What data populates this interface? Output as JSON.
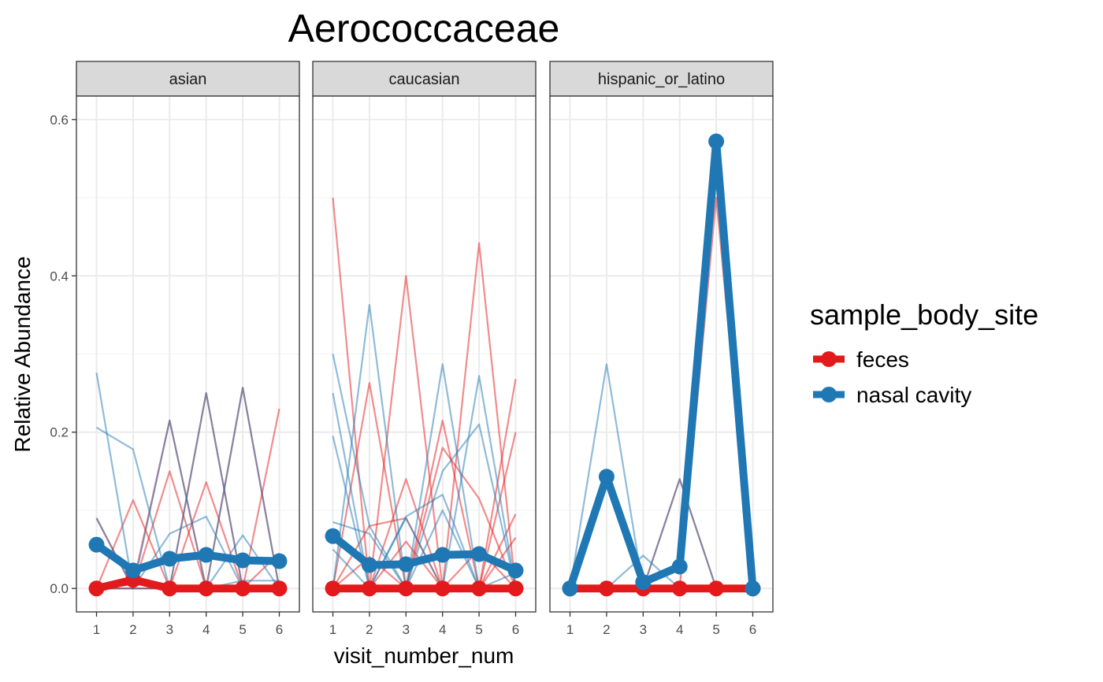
{
  "chart_data": {
    "type": "line",
    "title": "Aerococcaceae",
    "xlabel": "visit_number_num",
    "ylabel": "Relative Abundance",
    "x_ticks": [
      1,
      2,
      3,
      4,
      5,
      6
    ],
    "y_ticks": [
      "0.0",
      "0.2",
      "0.4",
      "0.6"
    ],
    "ylim": [
      -0.03,
      0.63
    ],
    "xlim": [
      0.45,
      6.55
    ],
    "grid": true,
    "legend": {
      "title": "sample_body_site",
      "placement": "right",
      "entries": [
        {
          "name": "feces",
          "color": "#e31a1c"
        },
        {
          "name": "nasal cavity",
          "color": "#1f78b4"
        }
      ]
    },
    "facets": [
      {
        "label": "asian",
        "mean_series": [
          {
            "name": "feces",
            "x": [
              1,
              2,
              3,
              4,
              5,
              6
            ],
            "y": [
              0.0,
              0.011,
              0.0,
              0.0,
              0.0,
              0.0
            ]
          },
          {
            "name": "nasal cavity",
            "x": [
              1,
              2,
              3,
              4,
              5,
              6
            ],
            "y": [
              0.056,
              0.023,
              0.038,
              0.043,
              0.036,
              0.035
            ]
          }
        ],
        "individual_series": [
          {
            "name": "feces",
            "x": [
              1,
              2,
              3,
              4,
              5,
              6
            ],
            "y": [
              0.0,
              0.005,
              0.215,
              0.0,
              0.0,
              0.0
            ]
          },
          {
            "name": "feces",
            "x": [
              1,
              2,
              3,
              4,
              5,
              6
            ],
            "y": [
              0.0,
              0.113,
              0.0,
              0.25,
              0.0,
              0.0
            ]
          },
          {
            "name": "feces",
            "x": [
              1,
              2,
              3,
              4,
              5,
              6
            ],
            "y": [
              0.0,
              0.0,
              0.15,
              0.0,
              0.257,
              0.0
            ]
          },
          {
            "name": "feces",
            "x": [
              1,
              2,
              3,
              4,
              5,
              6
            ],
            "y": [
              0.09,
              0.0,
              0.0,
              0.136,
              0.0,
              0.23
            ]
          },
          {
            "name": "feces",
            "x": [
              1,
              2,
              3,
              4,
              5,
              6
            ],
            "y": [
              0.0,
              0.0,
              0.0,
              0.0,
              0.0,
              0.045
            ]
          },
          {
            "name": "nasal cavity",
            "x": [
              1,
              2,
              3,
              4,
              5,
              6
            ],
            "y": [
              0.276,
              0.0,
              0.07,
              0.092,
              0.0,
              0.0
            ]
          },
          {
            "name": "nasal cavity",
            "x": [
              1,
              2,
              3,
              4,
              5,
              6
            ],
            "y": [
              0.206,
              0.178,
              0.0,
              0.0,
              0.068,
              0.0
            ]
          },
          {
            "name": "nasal cavity",
            "x": [
              1,
              2,
              3,
              4,
              5,
              6
            ],
            "y": [
              0.09,
              0.0,
              0.215,
              0.0,
              0.01,
              0.01
            ]
          },
          {
            "name": "nasal cavity",
            "x": [
              1,
              2,
              3,
              4,
              5,
              6
            ],
            "y": [
              0.0,
              0.015,
              0.0,
              0.25,
              0.0,
              0.0
            ]
          },
          {
            "name": "nasal cavity",
            "x": [
              1,
              2,
              3,
              4,
              5,
              6
            ],
            "y": [
              0.0,
              0.0,
              0.0,
              0.0,
              0.257,
              0.0
            ]
          }
        ]
      },
      {
        "label": "caucasian",
        "mean_series": [
          {
            "name": "feces",
            "x": [
              1,
              2,
              3,
              4,
              5,
              6
            ],
            "y": [
              0.0,
              0.0,
              0.0,
              0.0,
              0.0,
              0.0
            ]
          },
          {
            "name": "nasal cavity",
            "x": [
              1,
              2,
              3,
              4,
              5,
              6
            ],
            "y": [
              0.067,
              0.03,
              0.031,
              0.043,
              0.044,
              0.023
            ]
          }
        ],
        "individual_series": [
          {
            "name": "feces",
            "x": [
              1,
              2,
              3,
              4,
              5,
              6
            ],
            "y": [
              0.0,
              0.263,
              0.0,
              0.0,
              0.0,
              0.0
            ]
          },
          {
            "name": "feces",
            "x": [
              1,
              2,
              3,
              4,
              5,
              6
            ],
            "y": [
              0.0,
              0.0,
              0.4,
              0.0,
              0.0,
              0.0
            ]
          },
          {
            "name": "feces",
            "x": [
              1,
              2,
              3,
              4,
              5,
              6
            ],
            "y": [
              0.0,
              0.0,
              0.0,
              0.215,
              0.0,
              0.0
            ]
          },
          {
            "name": "feces",
            "x": [
              1,
              2,
              3,
              4,
              5,
              6
            ],
            "y": [
              0.0,
              0.0,
              0.0,
              0.0,
              0.442,
              0.0
            ]
          },
          {
            "name": "feces",
            "x": [
              1,
              2,
              3,
              4,
              5,
              6
            ],
            "y": [
              0.0,
              0.0,
              0.0,
              0.0,
              0.0,
              0.268
            ]
          },
          {
            "name": "feces",
            "x": [
              1,
              2,
              3,
              4,
              5,
              6
            ],
            "y": [
              0.5,
              0.0,
              0.0,
              0.0,
              0.0,
              0.2
            ]
          },
          {
            "name": "feces",
            "x": [
              1,
              2,
              3,
              4,
              5,
              6
            ],
            "y": [
              0.0,
              0.08,
              0.09,
              0.0,
              0.0,
              0.0
            ]
          },
          {
            "name": "feces",
            "x": [
              1,
              2,
              3,
              4,
              5,
              6
            ],
            "y": [
              0.0,
              0.0,
              0.14,
              0.0,
              0.0,
              0.095
            ]
          },
          {
            "name": "feces",
            "x": [
              1,
              2,
              3,
              4,
              5,
              6
            ],
            "y": [
              0.0,
              0.0,
              0.0,
              0.18,
              0.115,
              0.0
            ]
          },
          {
            "name": "feces",
            "x": [
              1,
              2,
              3,
              4,
              5,
              6
            ],
            "y": [
              0.0,
              0.04,
              0.0,
              0.0,
              0.0,
              0.065
            ]
          },
          {
            "name": "feces",
            "x": [
              1,
              2,
              3,
              4,
              5,
              6
            ],
            "y": [
              0.0,
              0.0,
              0.06,
              0.0,
              0.05,
              0.0
            ]
          },
          {
            "name": "nasal cavity",
            "x": [
              1,
              2,
              3,
              4,
              5,
              6
            ],
            "y": [
              0.195,
              0.0,
              0.0,
              0.1,
              0.0,
              0.0
            ]
          },
          {
            "name": "nasal cavity",
            "x": [
              1,
              2,
              3,
              4,
              5,
              6
            ],
            "y": [
              0.3,
              0.08,
              0.0,
              0.0,
              0.0,
              0.0
            ]
          },
          {
            "name": "nasal cavity",
            "x": [
              1,
              2,
              3,
              4,
              5,
              6
            ],
            "y": [
              0.25,
              0.0,
              0.09,
              0.0,
              0.0,
              0.0
            ]
          },
          {
            "name": "nasal cavity",
            "x": [
              1,
              2,
              3,
              4,
              5,
              6
            ],
            "y": [
              0.0,
              0.0,
              0.0,
              0.287,
              0.0,
              0.0
            ]
          },
          {
            "name": "nasal cavity",
            "x": [
              1,
              2,
              3,
              4,
              5,
              6
            ],
            "y": [
              0.0,
              0.0,
              0.0,
              0.0,
              0.272,
              0.0
            ]
          },
          {
            "name": "nasal cavity",
            "x": [
              1,
              2,
              3,
              4,
              5,
              6
            ],
            "y": [
              0.085,
              0.07,
              0.0,
              0.15,
              0.21,
              0.0
            ]
          },
          {
            "name": "nasal cavity",
            "x": [
              1,
              2,
              3,
              4,
              5,
              6
            ],
            "y": [
              0.0,
              0.363,
              0.0,
              0.0,
              0.0,
              0.0
            ]
          },
          {
            "name": "nasal cavity",
            "x": [
              1,
              2,
              3,
              4,
              5,
              6
            ],
            "y": [
              0.0,
              0.0,
              0.092,
              0.12,
              0.0,
              0.0
            ]
          },
          {
            "name": "nasal cavity",
            "x": [
              1,
              2,
              3,
              4,
              5,
              6
            ],
            "y": [
              0.05,
              0.0,
              0.0,
              0.0,
              0.0,
              0.02
            ]
          }
        ]
      },
      {
        "label": "hispanic_or_latino",
        "mean_series": [
          {
            "name": "feces",
            "x": [
              1,
              2,
              3,
              4,
              5,
              6
            ],
            "y": [
              0.0,
              0.0,
              0.0,
              0.0,
              0.0,
              0.0
            ]
          },
          {
            "name": "nasal cavity",
            "x": [
              1,
              2,
              3,
              4,
              5,
              6
            ],
            "y": [
              0.0,
              0.143,
              0.008,
              0.028,
              0.572,
              0.0
            ]
          }
        ],
        "individual_series": [
          {
            "name": "feces",
            "x": [
              1,
              2,
              3,
              4,
              5,
              6
            ],
            "y": [
              0.0,
              0.0,
              0.0,
              0.14,
              0.0,
              0.0
            ]
          },
          {
            "name": "feces",
            "x": [
              1,
              2,
              3,
              4,
              5,
              6
            ],
            "y": [
              0.0,
              0.0,
              0.0,
              0.0,
              0.5,
              0.0
            ]
          },
          {
            "name": "nasal cavity",
            "x": [
              1,
              2,
              3,
              4,
              5,
              6
            ],
            "y": [
              0.0,
              0.287,
              0.0,
              0.0,
              0.0,
              0.0
            ]
          },
          {
            "name": "nasal cavity",
            "x": [
              1,
              2,
              3,
              4,
              5,
              6
            ],
            "y": [
              0.0,
              0.0,
              0.042,
              0.0,
              0.0,
              0.0
            ]
          },
          {
            "name": "nasal cavity",
            "x": [
              1,
              2,
              3,
              4,
              5,
              6
            ],
            "y": [
              0.0,
              0.0,
              0.0,
              0.14,
              0.0,
              0.0
            ]
          }
        ]
      }
    ]
  }
}
